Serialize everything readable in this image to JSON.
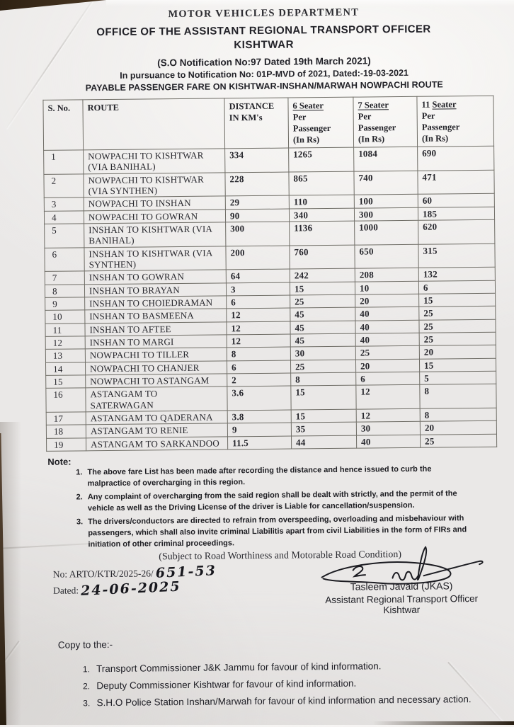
{
  "document": {
    "department": "MOTOR VEHICLES DEPARTMENT",
    "office_line": "OFFICE OF THE ASSISTANT REGIONAL TRANSPORT OFFICER",
    "office_place": "KISHTWAR",
    "notification_line": "(S.O Notification No:97 Dated 19th March 2021)",
    "pursuance_line": "In pursuance to Notification No: 01P-MVD of 2021, Dated:-19-03-2021",
    "subject_line": "PAYABLE PASSENGER FARE ON KISHTWAR-INSHAN/MARWAH NOWPACHI ROUTE"
  },
  "fare_table": {
    "columns": [
      {
        "line1": "S. No."
      },
      {
        "line1": "ROUTE"
      },
      {
        "line1": "DISTANCE",
        "line2": "IN KM's"
      },
      {
        "prefix": "",
        "seater": "6 Seater",
        "sub1": "Per",
        "sub2": "Passenger",
        "sub3": "(In Rs)"
      },
      {
        "prefix": "",
        "seater": "7 Seater",
        "sub1": "Per",
        "sub2": "Passenger",
        "sub3": "(In Rs)"
      },
      {
        "prefix": "11 ",
        "seater": "Seater",
        "sub1": "Per",
        "sub2": "Passenger",
        "sub3": "(In Rs)"
      }
    ],
    "rows": [
      [
        "1",
        "NOWPACHI TO KISHTWAR\n(VIA BANIHAL)",
        "334",
        "1265",
        "1084",
        "690"
      ],
      [
        "2",
        "NOWPACHI TO KISHTWAR\n(VIA SYNTHEN)",
        "228",
        "865",
        "740",
        "471"
      ],
      [
        "3",
        "NOWPACHI TO INSHAN",
        "29",
        "110",
        "100",
        "60"
      ],
      [
        "4",
        "NOWPACHI TO GOWRAN",
        "90",
        "340",
        "300",
        "185"
      ],
      [
        "5",
        "INSHAN TO KISHTWAR (VIA\nBANIHAL)",
        "300",
        "1136",
        "1000",
        "620"
      ],
      [
        "6",
        "INSHAN TO KISHTWAR (VIA\nSYNTHEN)",
        "200",
        "760",
        "650",
        "315"
      ],
      [
        "7",
        "INSHAN TO GOWRAN",
        "64",
        "242",
        "208",
        "132"
      ],
      [
        "8",
        "INSHAN TO BRAYAN",
        "3",
        "15",
        "10",
        "6"
      ],
      [
        "9",
        "INSHAN TO CHOIEDRAMAN",
        "6",
        "25",
        "20",
        "15"
      ],
      [
        "10",
        "INSHAN TO BASMEENA",
        "12",
        "45",
        "40",
        "25"
      ],
      [
        "11",
        "INSHAN TO AFTEE",
        "12",
        "45",
        "40",
        "25"
      ],
      [
        "12",
        "INSHAN TO MARGI",
        "12",
        "45",
        "40",
        "25"
      ],
      [
        "13",
        "NOWPACHI TO TILLER",
        "8",
        "30",
        "25",
        "20"
      ],
      [
        "14",
        "NOWPACHI TO CHANJER",
        "6",
        "25",
        "20",
        "15"
      ],
      [
        "15",
        "NOWPACHI TO ASTANGAM",
        "2",
        "8",
        "6",
        "5"
      ],
      [
        "16",
        "ASTANGAM TO\nSATERWAGAN",
        "3.6",
        "15",
        "12",
        "8"
      ],
      [
        "17",
        "ASTANGAM TO QADERANA",
        "3.8",
        "15",
        "12",
        "8"
      ],
      [
        "18",
        "ASTANGAM TO RENIE",
        "9",
        "35",
        "30",
        "20"
      ],
      [
        "19",
        "ASTANGAM TO SARKANDOO",
        "11.5",
        "44",
        "40",
        "25"
      ]
    ]
  },
  "notes": {
    "heading": "Note:",
    "items": [
      "The above fare List has been made after recording the distance and hence issued to curb the\nmalpractice of overcharging in this region.",
      "Any complaint of overcharging from the said region shall be dealt with strictly, and the permit of the\nvehicle as well as the Driving License of the driver is Liable for cancellation/suspension.",
      "The drivers/conductors are directed to refrain from overspeeding, overloading and misbehaviour with\npassengers, which shall also invite criminal Liabilitis apart from civil Liabilities in the form of FIRs and\ninitiation of other criminal proceedings."
    ]
  },
  "condition_line": "(Subject to Road Worthiness and Motorable Road Condition)",
  "reference": {
    "number_prefix": "No: ARTO/KTR/2025-26/",
    "number_handwritten": "651-53",
    "date_label": "Dated:",
    "date_handwritten": "24-06-2025"
  },
  "signatory": {
    "name": "Tasleem Javaid (JKAS)",
    "designation": "Assistant Regional Transport Officer",
    "place": "Kishtwar"
  },
  "copy": {
    "heading": "Copy to the:-",
    "items": [
      "Transport Commissioner J&K Jammu for favour of kind information.",
      "Deputy Commissioner Kishtwar for favour of kind information.",
      "S.H.O Police Station Inshan/Marwah for favour of kind information and necessary action."
    ]
  },
  "colors": {
    "paper": "#eae8e7",
    "background_surface": "#3c2c1c",
    "ink": "#23232a"
  }
}
